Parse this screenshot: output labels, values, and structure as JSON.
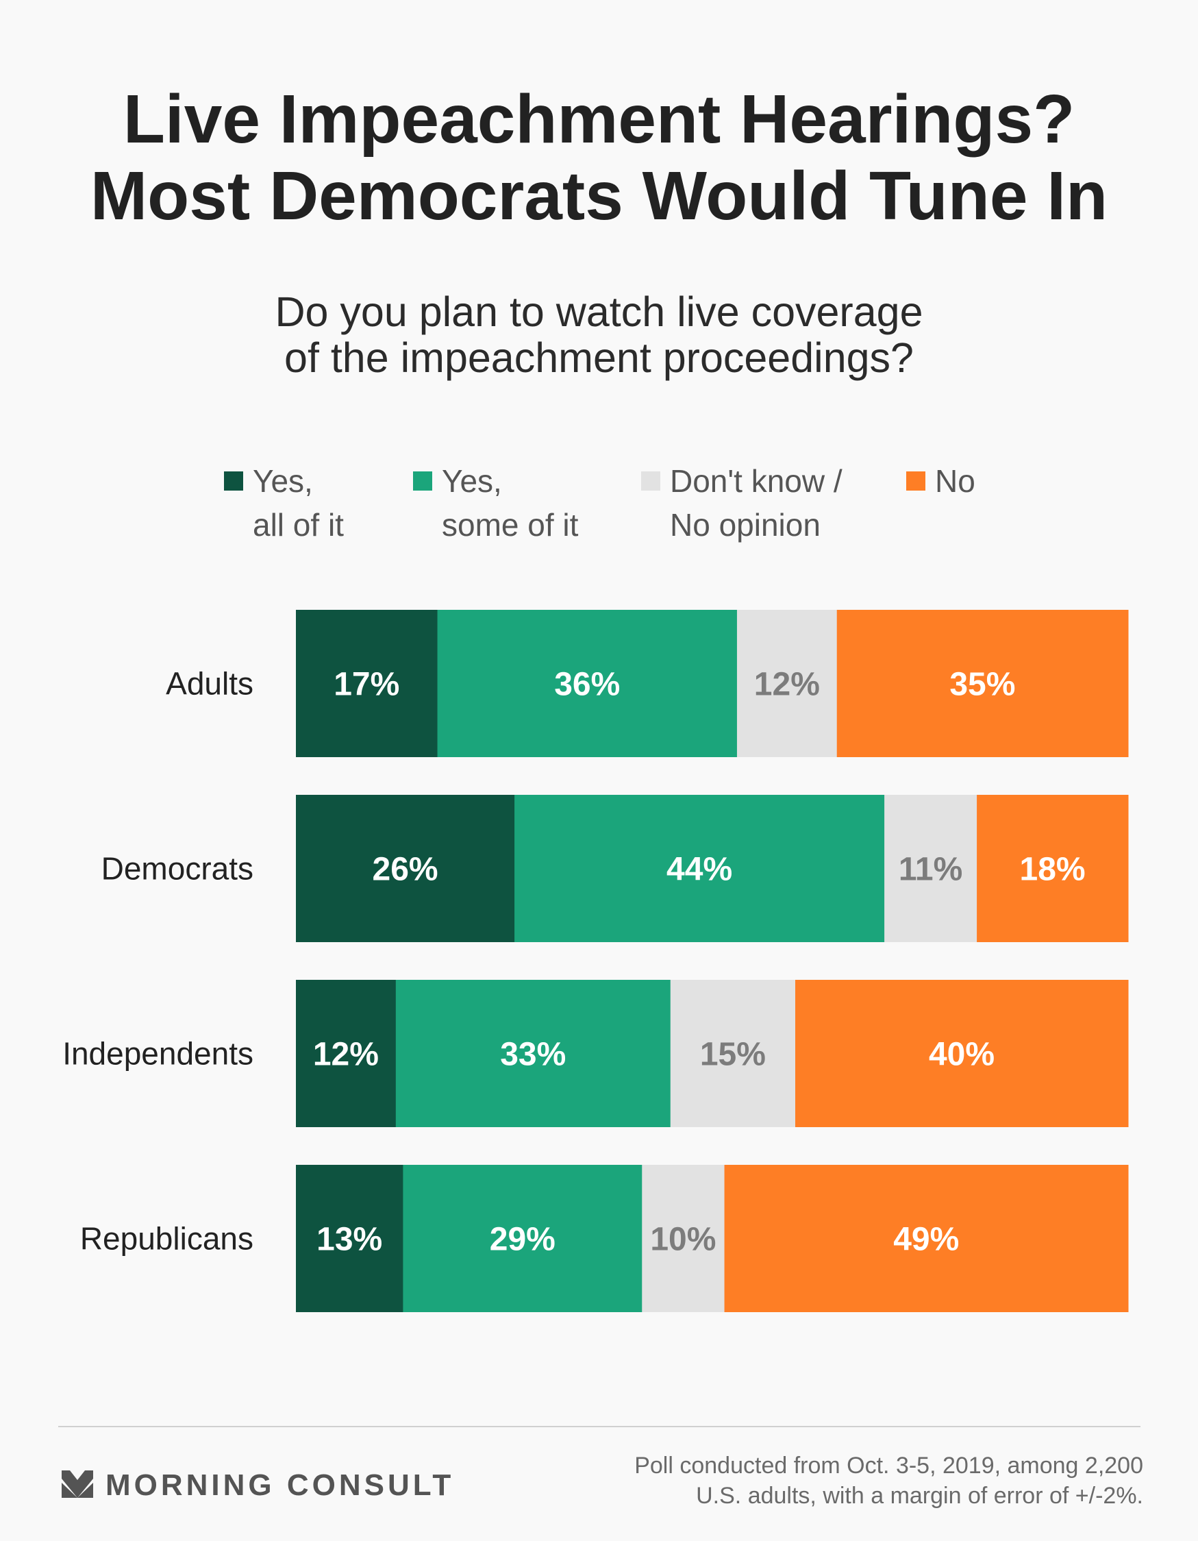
{
  "title": {
    "line1": "Live Impeachment Hearings?",
    "line2": "Most Democrats Would Tune In"
  },
  "subtitle": {
    "line1": "Do you plan to watch live coverage",
    "line2": "of the impeachment proceedings?"
  },
  "legend": [
    {
      "line1": "Yes,",
      "line2": "all of it",
      "color": "#0e5340"
    },
    {
      "line1": "Yes,",
      "line2": "some of it",
      "color": "#1ba57b"
    },
    {
      "line1": "Don't know /",
      "line2": "No opinion",
      "color": "#e2e2e2"
    },
    {
      "line1": "No",
      "line2": "",
      "color": "#fe7e25"
    }
  ],
  "chart_data": {
    "type": "bar",
    "orientation": "horizontal",
    "stacked": true,
    "categories": [
      "Adults",
      "Democrats",
      "Independents",
      "Republicans"
    ],
    "series": [
      {
        "name": "Yes, all of it",
        "values": [
          17,
          26,
          12,
          13
        ],
        "labels": [
          "17%",
          "26%",
          "12%",
          "13%"
        ],
        "color": "#0e5340",
        "label_color": "#ffffff"
      },
      {
        "name": "Yes, some of it",
        "values": [
          36,
          44,
          33,
          29
        ],
        "labels": [
          "36%",
          "44%",
          "33%",
          "29%"
        ],
        "color": "#1ba57b",
        "label_color": "#ffffff"
      },
      {
        "name": "Don't know / No opinion",
        "values": [
          12,
          11,
          15,
          10
        ],
        "labels": [
          "12%",
          "11%",
          "15%",
          "10%"
        ],
        "color": "#e2e2e2",
        "label_color": "#7c7c7c"
      },
      {
        "name": "No",
        "values": [
          35,
          18,
          40,
          49
        ],
        "labels": [
          "35%",
          "18%",
          "40%",
          "49%"
        ],
        "color": "#fe7e25",
        "label_color": "#ffffff"
      }
    ],
    "xlim": [
      0,
      100
    ],
    "grid": false,
    "legend_position": "top"
  },
  "footer": {
    "brand": "MORNING CONSULT",
    "source_line1": "Poll conducted from Oct. 3-5, 2019, among 2,200",
    "source_line2": "U.S. adults, with a margin of error of +/-2%."
  }
}
